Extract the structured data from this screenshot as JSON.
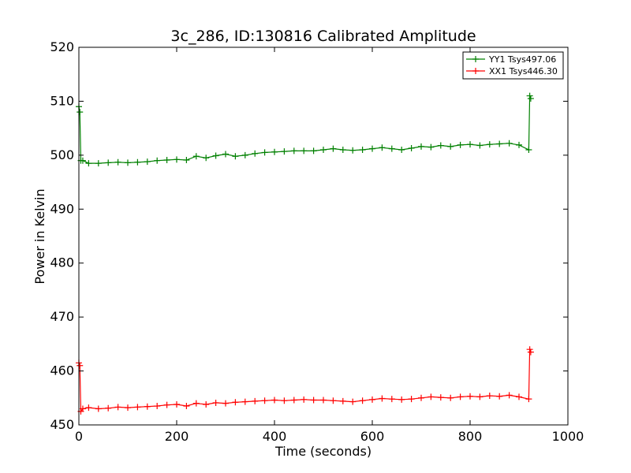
{
  "chart_data": {
    "type": "line",
    "title": "3c_286, ID:130816 Calibrated Amplitude",
    "xlabel": "Time (seconds)",
    "ylabel": "Power in Kelvin",
    "xlim": [
      0,
      1000
    ],
    "ylim": [
      450,
      520
    ],
    "xticks": [
      0,
      200,
      400,
      600,
      800,
      1000
    ],
    "yticks": [
      450,
      460,
      470,
      480,
      490,
      500,
      510,
      520
    ],
    "grid": false,
    "legend_position": "top-right",
    "marker": "+",
    "series": [
      {
        "name": "YY1 Tsys497.06",
        "color": "#008000",
        "x": [
          0,
          2,
          4,
          8,
          20,
          40,
          60,
          80,
          100,
          120,
          140,
          160,
          180,
          200,
          220,
          240,
          260,
          280,
          300,
          320,
          340,
          360,
          380,
          400,
          420,
          440,
          460,
          480,
          500,
          520,
          540,
          560,
          580,
          600,
          620,
          640,
          660,
          680,
          700,
          720,
          740,
          760,
          780,
          800,
          820,
          840,
          860,
          880,
          900,
          920,
          922,
          924
        ],
        "y": [
          509,
          508,
          499,
          499,
          498.5,
          498.5,
          498.6,
          498.7,
          498.6,
          498.7,
          498.8,
          499.0,
          499.1,
          499.2,
          499.1,
          499.8,
          499.5,
          499.9,
          500.2,
          499.8,
          500.0,
          500.3,
          500.5,
          500.6,
          500.7,
          500.8,
          500.8,
          500.8,
          501.0,
          501.2,
          501.0,
          500.9,
          501.0,
          501.2,
          501.4,
          501.2,
          501.0,
          501.3,
          501.6,
          501.5,
          501.8,
          501.6,
          501.9,
          502.0,
          501.8,
          502.0,
          502.1,
          502.2,
          501.9,
          501.0,
          511,
          510.5
        ]
      },
      {
        "name": "XX1 Tsys446.30",
        "color": "#ff0000",
        "x": [
          0,
          2,
          4,
          8,
          20,
          40,
          60,
          80,
          100,
          120,
          140,
          160,
          180,
          200,
          220,
          240,
          260,
          280,
          300,
          320,
          340,
          360,
          380,
          400,
          420,
          440,
          460,
          480,
          500,
          520,
          540,
          560,
          580,
          600,
          620,
          640,
          660,
          680,
          700,
          720,
          740,
          760,
          780,
          800,
          820,
          840,
          860,
          880,
          900,
          920,
          922,
          924
        ],
        "y": [
          461.5,
          461.0,
          452.5,
          453.0,
          453.2,
          453.0,
          453.1,
          453.3,
          453.2,
          453.3,
          453.4,
          453.5,
          453.7,
          453.8,
          453.5,
          454.0,
          453.8,
          454.1,
          454.0,
          454.2,
          454.3,
          454.4,
          454.5,
          454.6,
          454.5,
          454.6,
          454.7,
          454.6,
          454.6,
          454.5,
          454.4,
          454.3,
          454.5,
          454.7,
          454.9,
          454.8,
          454.7,
          454.8,
          455.0,
          455.2,
          455.1,
          455.0,
          455.2,
          455.3,
          455.2,
          455.4,
          455.3,
          455.5,
          455.2,
          454.8,
          464.0,
          463.5
        ]
      }
    ]
  }
}
